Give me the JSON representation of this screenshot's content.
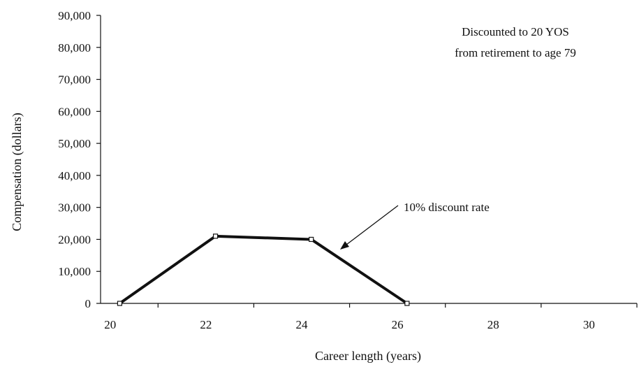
{
  "chart_data": {
    "type": "line",
    "x": [
      20,
      22,
      24,
      26,
      28,
      30
    ],
    "series": [
      {
        "name": "",
        "values": [
          0,
          21000,
          20000,
          0,
          0,
          0
        ]
      }
    ],
    "xlabel": "Career length (years)",
    "ylabel": "Compensation (dollars)",
    "xlim": [
      19.8,
      31
    ],
    "ylim": [
      0,
      90000
    ],
    "x_ticks": [
      "20",
      "22",
      "24",
      "26",
      "28",
      "30"
    ],
    "y_ticks": [
      "0",
      "10,000",
      "20,000",
      "30,000",
      "40,000",
      "50,000",
      "60,000",
      "70,000",
      "80,000",
      "90,000"
    ],
    "grid": false,
    "annotations": {
      "note_line1": "Discounted to 20 YOS",
      "note_line2": "from retirement to age 79",
      "arrow_label": "10% discount rate"
    },
    "line_color": "#111111"
  }
}
